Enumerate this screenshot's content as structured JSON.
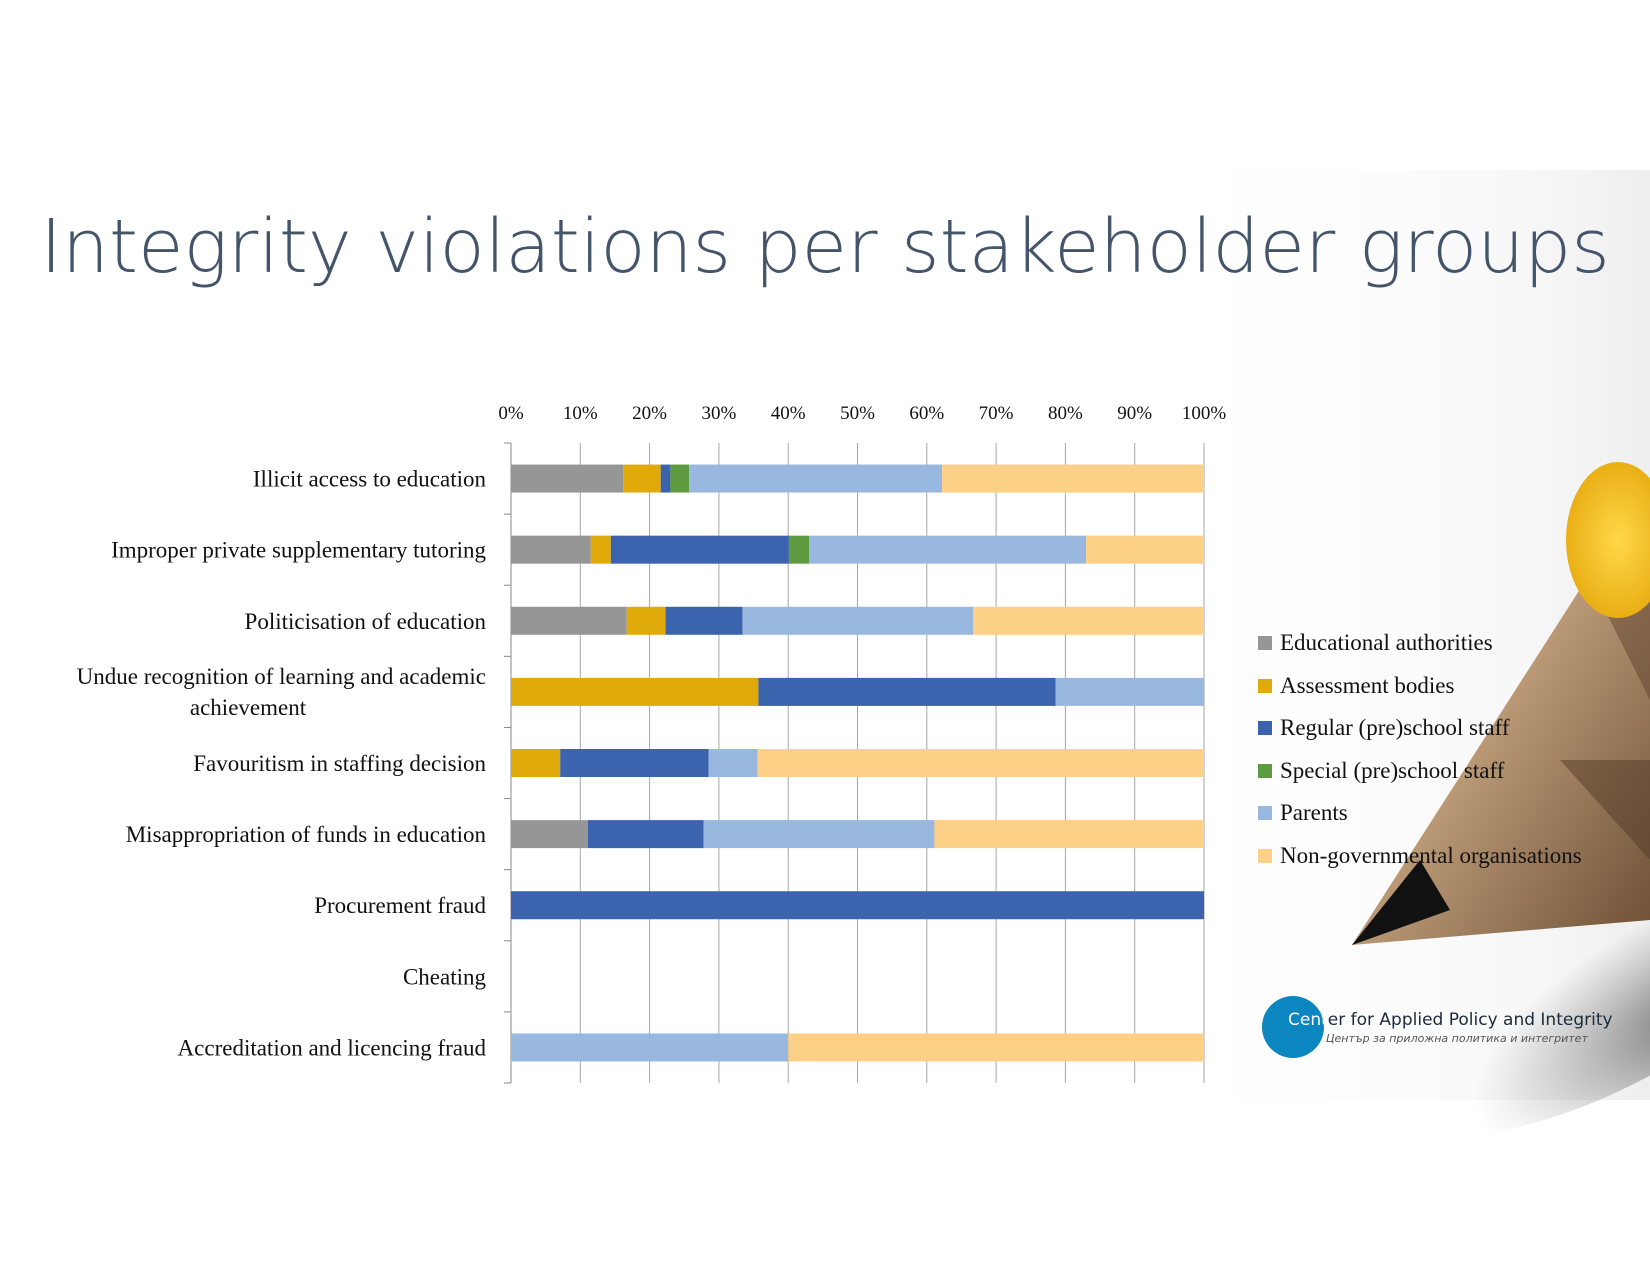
{
  "slide": {
    "title": "Integrity violations per stakeholder groups"
  },
  "chart_data": {
    "type": "bar",
    "orientation": "horizontal",
    "stacked": "100%",
    "xlim": [
      0,
      100
    ],
    "x_ticks": [
      "0%",
      "10%",
      "20%",
      "30%",
      "40%",
      "50%",
      "60%",
      "70%",
      "80%",
      "90%",
      "100%"
    ],
    "categories": [
      "Illicit access to education",
      "Improper private supplementary tutoring",
      "Politicisation of education",
      "Undue recognition of learning and academic achievement",
      "Favouritism in staffing decision",
      "Misappropriation of funds in education",
      "Procurement fraud",
      "Cheating",
      "Accreditation and licencing fraud"
    ],
    "series": [
      {
        "name": "Educational authorities",
        "color": "#969696",
        "values": [
          16.2,
          11.5,
          16.7,
          0,
          0,
          11.1,
          0,
          0,
          0
        ]
      },
      {
        "name": "Assessment bodies",
        "color": "#e0aa0a",
        "values": [
          5.4,
          2.9,
          5.6,
          35.7,
          7.1,
          0,
          0,
          0,
          0
        ]
      },
      {
        "name": "Regular (pre)school staff",
        "color": "#3c63ae",
        "values": [
          1.4,
          25.7,
          11.1,
          42.9,
          21.4,
          16.7,
          100,
          0,
          0
        ]
      },
      {
        "name": "Special (pre)school staff",
        "color": "#5e9a3f",
        "values": [
          2.7,
          2.9,
          0,
          0,
          0,
          0,
          0,
          0,
          0
        ]
      },
      {
        "name": "Parents",
        "color": "#99b8e0",
        "values": [
          36.5,
          40.0,
          33.3,
          21.4,
          7.1,
          33.3,
          0,
          0,
          40.0
        ]
      },
      {
        "name": "Non-governmental organisations",
        "color": "#fdd088",
        "values": [
          37.8,
          17.0,
          33.3,
          0,
          64.4,
          38.9,
          0,
          0,
          60.0
        ]
      }
    ],
    "grid": true,
    "legend_position": "right"
  },
  "logo": {
    "name_first": "Cent",
    "name_rest": "er for Applied Policy and Integrity",
    "subtitle": "Център за приложна политика и интегритет"
  }
}
